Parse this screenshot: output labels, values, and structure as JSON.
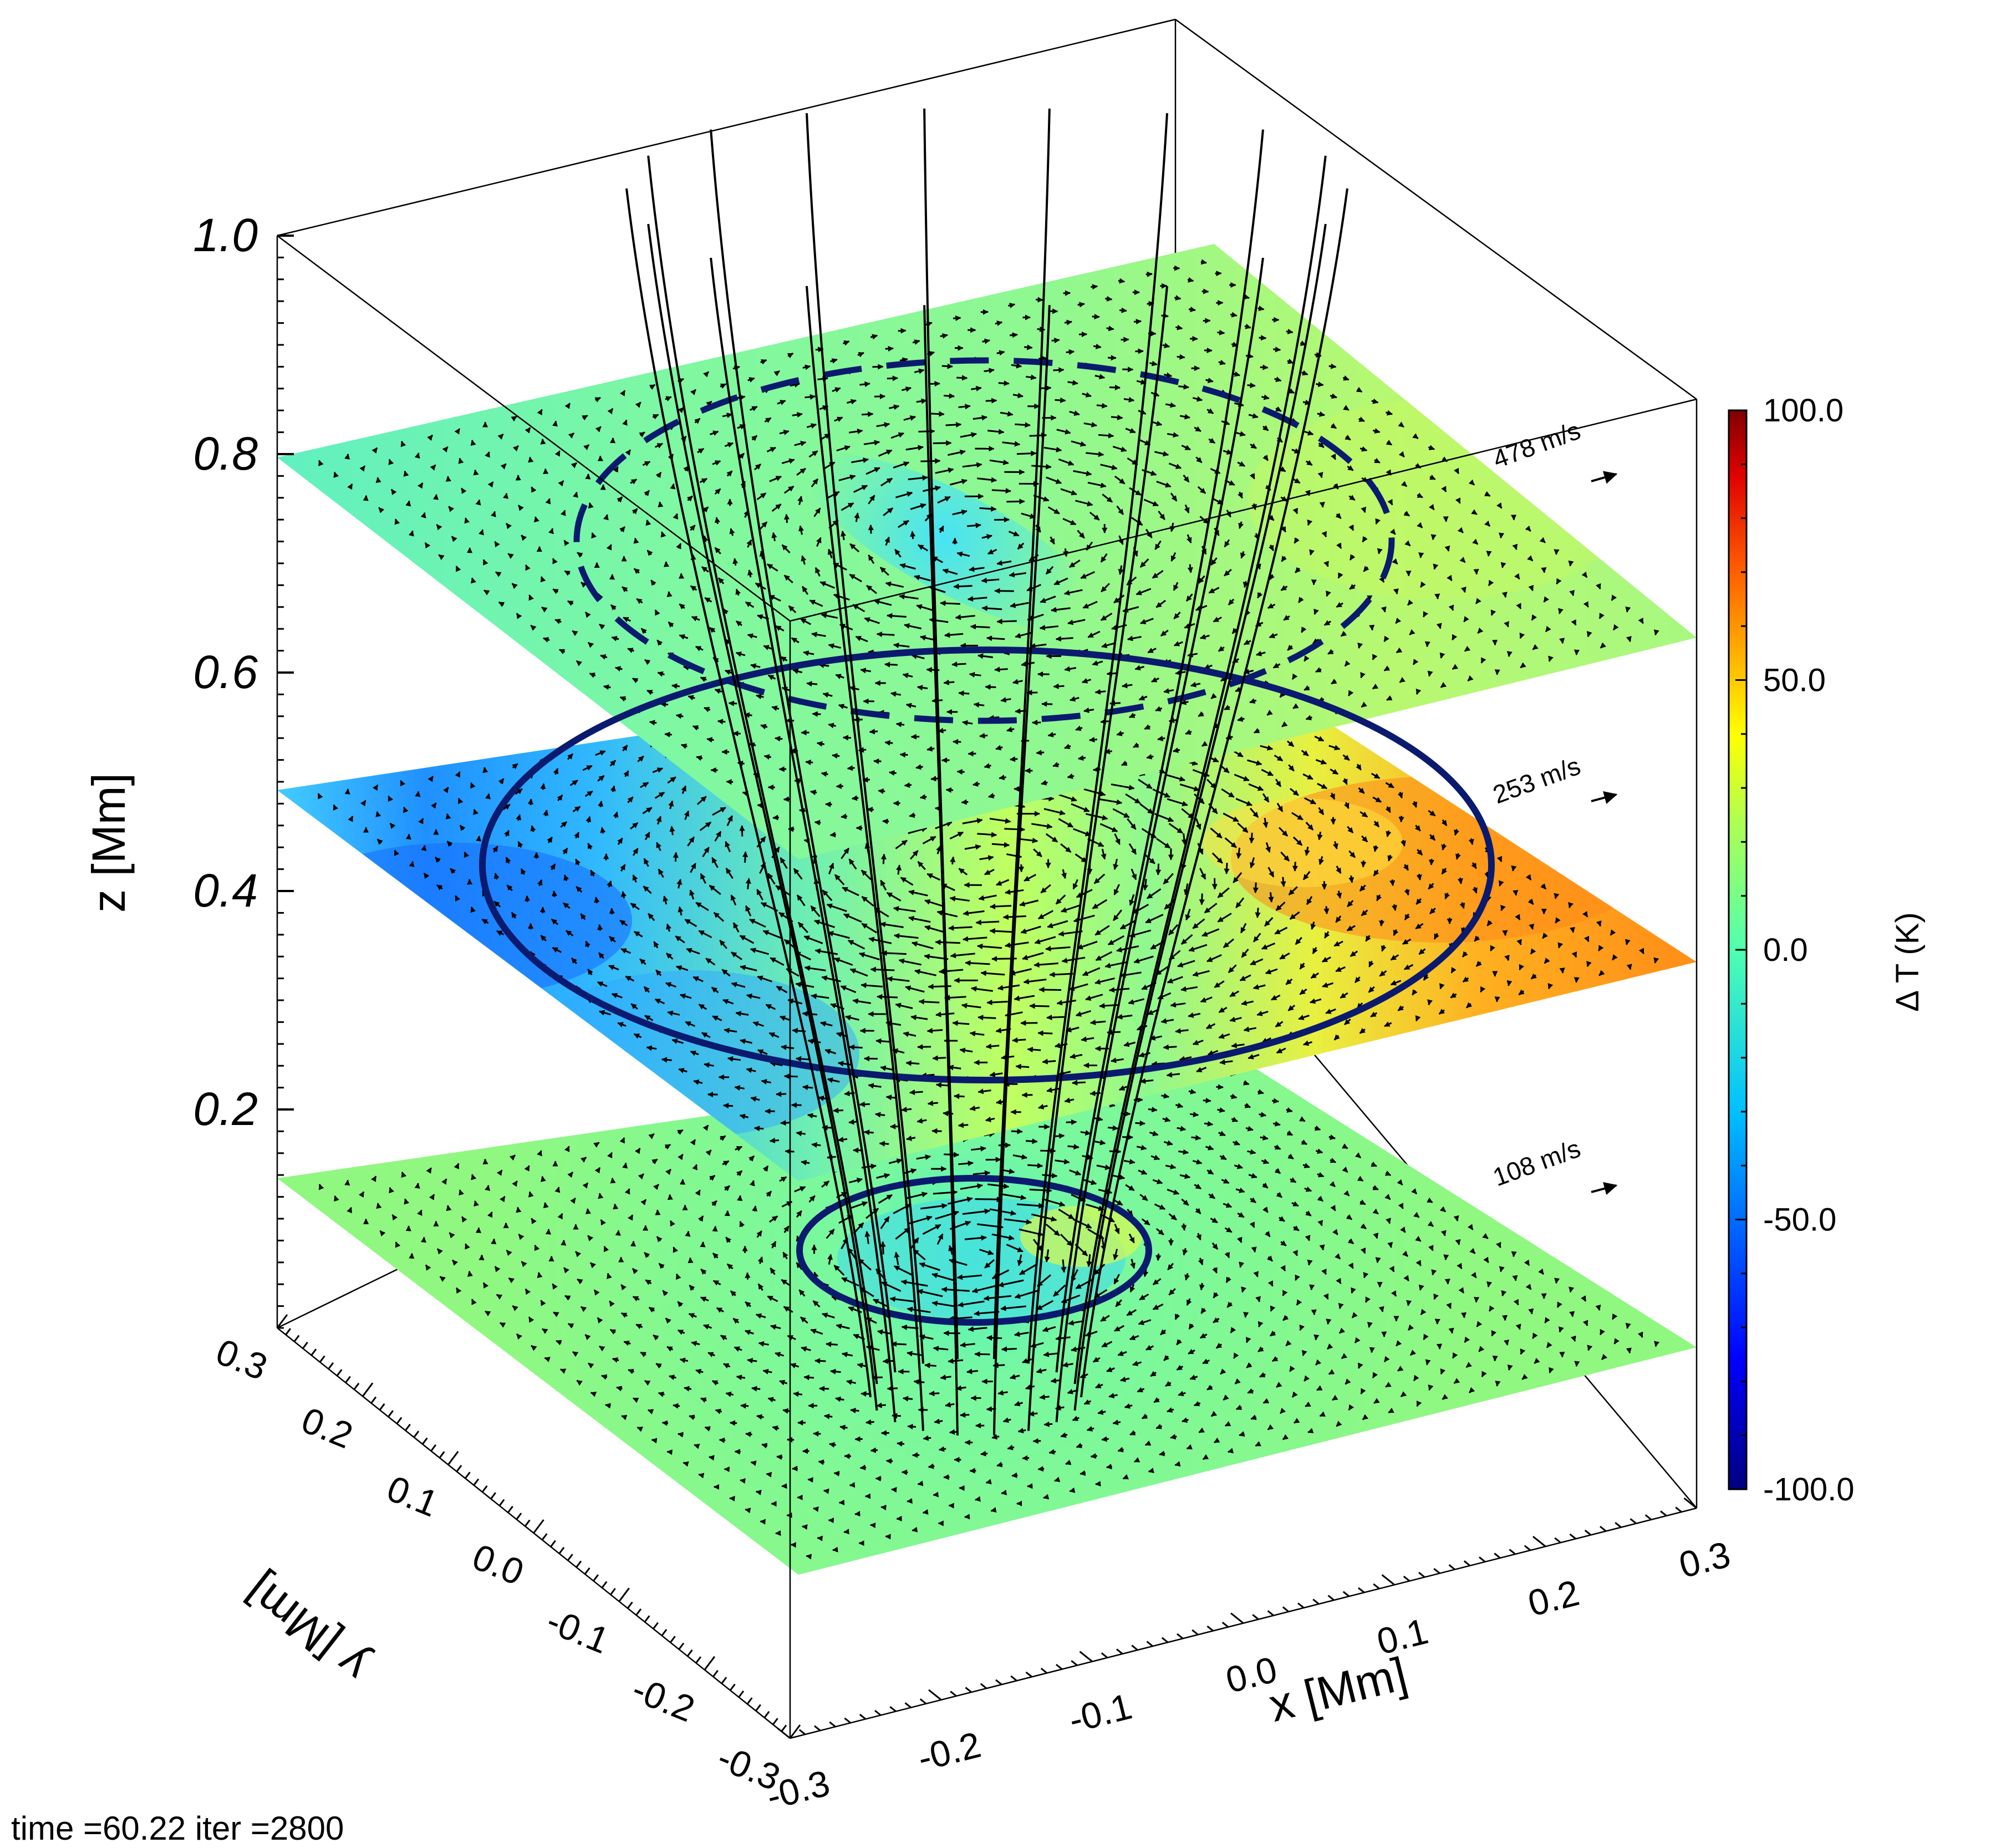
{
  "chart_data": {
    "type": "3d-slices",
    "zlabel": "z [Mm]",
    "xlabel": "x [Mm]",
    "ylabel": "y [Mm]",
    "zlim": [
      0.0,
      1.0
    ],
    "xlim": [
      -0.3,
      0.3
    ],
    "ylim": [
      -0.3,
      0.3
    ],
    "z_ticks": [
      "0.2",
      "0.4",
      "0.6",
      "0.8",
      "1.0"
    ],
    "x_ticks": [
      "-0.3",
      "-0.2",
      "-0.1",
      "0.0",
      "0.1",
      "0.2",
      "0.3"
    ],
    "y_ticks": [
      "-0.3",
      "-0.2",
      "-0.1",
      "0.0",
      "0.1",
      "0.2",
      "0.3"
    ],
    "slices": [
      {
        "z": 0.15,
        "reference_speed": "108 m/s",
        "ring": "solid",
        "ring_radius": 0.12
      },
      {
        "z": 0.5,
        "reference_speed": "253 m/s",
        "ring": "solid",
        "ring_radius": 0.34
      },
      {
        "z": 0.8,
        "reference_speed": "478 m/s",
        "ring": "dashed",
        "ring_radius": 0.28
      }
    ],
    "colorbar": {
      "title": "Δ T (K)",
      "range": [
        -100.0,
        100.0
      ],
      "ticks": [
        "-100.0",
        "-50.0",
        "0.0",
        "50.0",
        "100.0"
      ],
      "colormap": [
        "#00007f",
        "#0000ff",
        "#00a0ff",
        "#40ffd0",
        "#80ff80",
        "#d0ff40",
        "#ffe000",
        "#ff8000",
        "#ff1000",
        "#7f0000"
      ]
    },
    "field_lines": 18,
    "footer": "time =60.22 iter =2800"
  }
}
